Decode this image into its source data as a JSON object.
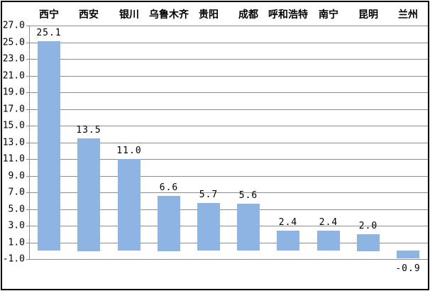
{
  "chart_data": {
    "type": "bar",
    "categories": [
      "西宁",
      "西安",
      "银川",
      "乌鲁木齐",
      "贵阳",
      "成都",
      "呼和浩特",
      "南宁",
      "昆明",
      "兰州"
    ],
    "values": [
      25.1,
      13.5,
      11.0,
      6.6,
      5.7,
      5.6,
      2.4,
      2.4,
      2.0,
      -0.9
    ],
    "series": [
      {
        "name": "",
        "values": [
          25.1,
          13.5,
          11.0,
          6.6,
          5.7,
          5.6,
          2.4,
          2.4,
          2.0,
          -0.9
        ]
      }
    ],
    "title": "",
    "xlabel": "",
    "ylabel": "",
    "ylim": [
      -1.0,
      27.0
    ],
    "ytick_step": 2.0,
    "ytick_labels": [
      "27.0",
      "25.0",
      "23.0",
      "21.0",
      "19.0",
      "17.0",
      "15.0",
      "13.0",
      "11.0",
      "9.0",
      "7.0",
      "5.0",
      "3.0",
      "1.0",
      "-1.0"
    ],
    "value_labels": [
      "25.1",
      "13.5",
      "11.0",
      "6.6",
      "5.7",
      "5.6",
      "2.4",
      "2.4",
      "2.0",
      "-0.9"
    ],
    "grid": true,
    "legend_position": "none",
    "category_label_position": "top",
    "colors": {
      "bar_fill": "#8db4e2",
      "gridline": "#8c8c8c",
      "frame": "#000000",
      "background": "#ffffff",
      "text": "#000000"
    }
  }
}
